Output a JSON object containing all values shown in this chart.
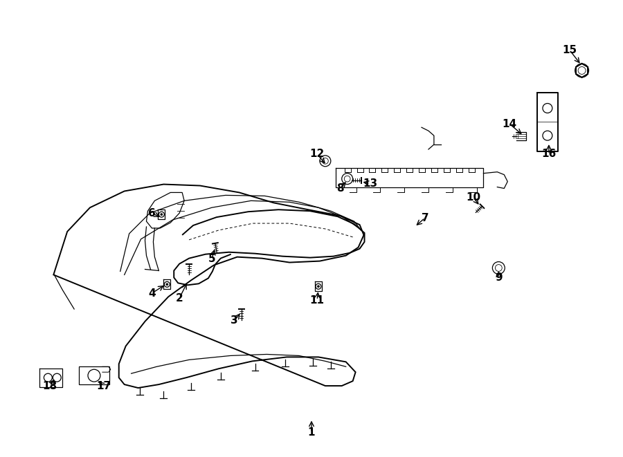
{
  "background_color": "#ffffff",
  "line_color": "#000000",
  "fig_width": 9.0,
  "fig_height": 6.61,
  "labels_arrows": [
    [
      "1",
      450,
      628,
      450,
      608
    ],
    [
      "2",
      258,
      432,
      270,
      408
    ],
    [
      "3",
      338,
      465,
      348,
      452
    ],
    [
      "4",
      218,
      425,
      238,
      412
    ],
    [
      "5",
      305,
      375,
      310,
      358
    ],
    [
      "6",
      218,
      308,
      232,
      315
    ],
    [
      "7",
      615,
      315,
      600,
      328
    ],
    [
      "8",
      492,
      272,
      502,
      260
    ],
    [
      "9",
      722,
      402,
      722,
      390
    ],
    [
      "10",
      685,
      285,
      695,
      298
    ],
    [
      "11",
      458,
      435,
      460,
      420
    ],
    [
      "12",
      458,
      222,
      472,
      238
    ],
    [
      "13",
      535,
      265,
      522,
      262
    ],
    [
      "14",
      738,
      178,
      758,
      195
    ],
    [
      "15",
      825,
      70,
      842,
      92
    ],
    [
      "16",
      795,
      222,
      795,
      205
    ],
    [
      "17",
      148,
      560,
      138,
      552
    ],
    [
      "18",
      70,
      560,
      78,
      548
    ]
  ]
}
